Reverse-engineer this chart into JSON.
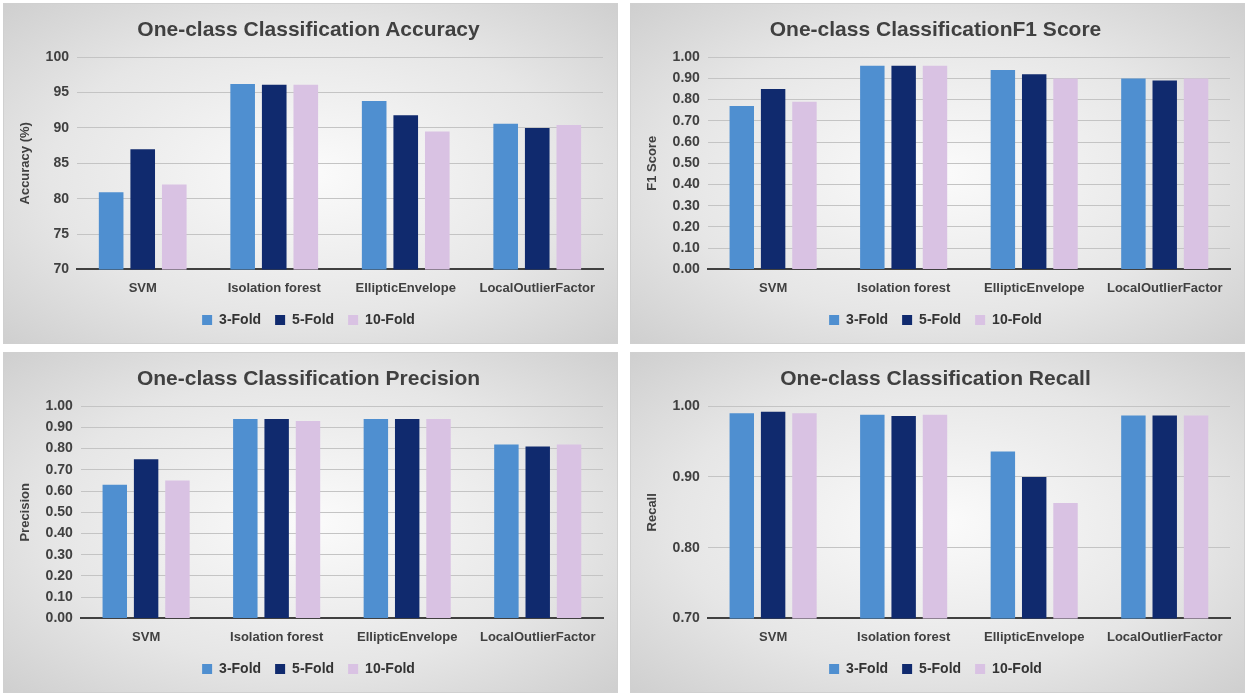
{
  "chart_data": [
    {
      "type": "bar",
      "title": "One-class Classification Accuracy",
      "ylabel": "Accuracy (%)",
      "categories": [
        "SVM",
        "Isolation forest",
        "EllipticEnvelope",
        "LocalOutlierFactor"
      ],
      "series": [
        {
          "name": "3-Fold",
          "color": "#4f8fd0",
          "values": [
            80.9,
            96.2,
            93.8,
            90.6
          ]
        },
        {
          "name": "5-Fold",
          "color": "#102a6e",
          "values": [
            87.0,
            96.1,
            91.8,
            90.0
          ]
        },
        {
          "name": "10-Fold",
          "color": "#d9c2e3",
          "values": [
            82.0,
            96.1,
            89.5,
            90.4
          ]
        }
      ],
      "ylim": [
        70,
        100
      ],
      "yticks": [
        70,
        75,
        80,
        85,
        90,
        95,
        100
      ],
      "grid": "y",
      "legend": "bottom"
    },
    {
      "type": "bar",
      "title": "One-class ClassificationF1 Score",
      "ylabel": "F1 Score",
      "categories": [
        "SVM",
        "Isolation forest",
        "EllipticEnvelope",
        "LocalOutlierFactor"
      ],
      "series": [
        {
          "name": "3-Fold",
          "color": "#4f8fd0",
          "values": [
            0.77,
            0.96,
            0.94,
            0.9
          ]
        },
        {
          "name": "5-Fold",
          "color": "#102a6e",
          "values": [
            0.85,
            0.96,
            0.92,
            0.89
          ]
        },
        {
          "name": "10-Fold",
          "color": "#d9c2e3",
          "values": [
            0.79,
            0.96,
            0.9,
            0.9
          ]
        }
      ],
      "ylim": [
        0,
        1
      ],
      "yticks": [
        {
          "value": 0,
          "label": "0.00"
        },
        {
          "value": 0.1,
          "label": "0.10"
        },
        {
          "value": 0.2,
          "label": "0.20"
        },
        {
          "value": 0.3,
          "label": "0.30"
        },
        {
          "value": 0.4,
          "label": "0.40"
        },
        {
          "value": 0.5,
          "label": "0.50"
        },
        {
          "value": 0.6,
          "label": "0.60"
        },
        {
          "value": 0.7,
          "label": "0.70"
        },
        {
          "value": 0.8,
          "label": "0.80"
        },
        {
          "value": 0.9,
          "label": "0.90"
        },
        {
          "value": 1,
          "label": "1.00"
        }
      ],
      "grid": "y",
      "legend": "bottom"
    },
    {
      "type": "bar",
      "title": "One-class Classification Precision",
      "ylabel": "Precision",
      "categories": [
        "SVM",
        "Isolation forest",
        "EllipticEnvelope",
        "LocalOutlierFactor"
      ],
      "series": [
        {
          "name": "3-Fold",
          "color": "#4f8fd0",
          "values": [
            0.63,
            0.94,
            0.94,
            0.82
          ]
        },
        {
          "name": "5-Fold",
          "color": "#102a6e",
          "values": [
            0.75,
            0.94,
            0.94,
            0.81
          ]
        },
        {
          "name": "10-Fold",
          "color": "#d9c2e3",
          "values": [
            0.65,
            0.93,
            0.94,
            0.82
          ]
        }
      ],
      "ylim": [
        0,
        1
      ],
      "yticks": [
        {
          "value": 0,
          "label": "0.00"
        },
        {
          "value": 0.1,
          "label": "0.10"
        },
        {
          "value": 0.2,
          "label": "0.20"
        },
        {
          "value": 0.3,
          "label": "0.30"
        },
        {
          "value": 0.4,
          "label": "0.40"
        },
        {
          "value": 0.5,
          "label": "0.50"
        },
        {
          "value": 0.6,
          "label": "0.60"
        },
        {
          "value": 0.7,
          "label": "0.70"
        },
        {
          "value": 0.8,
          "label": "0.80"
        },
        {
          "value": 0.9,
          "label": "0.90"
        },
        {
          "value": 1,
          "label": "1.00"
        }
      ],
      "grid": "y",
      "legend": "bottom"
    },
    {
      "type": "bar",
      "title": "One-class Classification Recall",
      "ylabel": "Recall",
      "categories": [
        "SVM",
        "Isolation forest",
        "EllipticEnvelope",
        "LocalOutlierFactor"
      ],
      "series": [
        {
          "name": "3-Fold",
          "color": "#4f8fd0",
          "values": [
            0.99,
            0.988,
            0.936,
            0.987
          ]
        },
        {
          "name": "5-Fold",
          "color": "#102a6e",
          "values": [
            0.992,
            0.986,
            0.9,
            0.987
          ]
        },
        {
          "name": "10-Fold",
          "color": "#d9c2e3",
          "values": [
            0.99,
            0.988,
            0.863,
            0.987
          ]
        }
      ],
      "ylim": [
        0.7,
        1
      ],
      "yticks": [
        {
          "value": 0.7,
          "label": "0.70"
        },
        {
          "value": 0.8,
          "label": "0.80"
        },
        {
          "value": 0.9,
          "label": "0.90"
        },
        {
          "value": 1,
          "label": "1.00"
        }
      ],
      "grid": "y",
      "legend": "bottom"
    }
  ]
}
